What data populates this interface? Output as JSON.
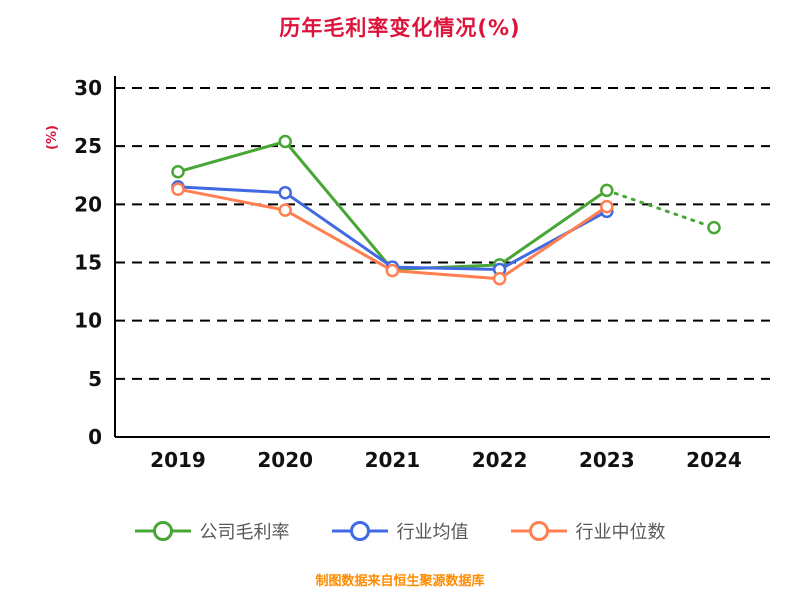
{
  "title": "历年毛利率变化情况(%)",
  "footer": "制图数据来自恒生聚源数据库",
  "colors": {
    "title": "#DC143C",
    "ylabel": "#DC143C",
    "axis": "#000000",
    "tick_text": "#111111",
    "footer": "#FF8C00",
    "legend_text": "#595959",
    "series_company": "#47A636",
    "series_industry_avg": "#4169E1",
    "series_industry_median": "#FF7F50"
  },
  "chart_data": {
    "type": "line",
    "title": "历年毛利率变化情况(%)",
    "ylabel": "(%)",
    "xlabel": "",
    "ylim": [
      0,
      30
    ],
    "yticks": [
      0,
      5,
      10,
      15,
      20,
      25,
      30
    ],
    "x": [
      "2019",
      "2020",
      "2021",
      "2022",
      "2023",
      "2024"
    ],
    "grid": "horizontal-dashed",
    "legend_position": "bottom",
    "series": [
      {
        "name": "公司毛利率",
        "color": "#47A636",
        "values": [
          22.8,
          25.4,
          14.4,
          14.8,
          21.2,
          18.0
        ],
        "last_segment_dashed": true
      },
      {
        "name": "行业均值",
        "color": "#4169E1",
        "values": [
          21.5,
          21.0,
          14.6,
          14.4,
          19.4,
          null
        ],
        "last_segment_dashed": false
      },
      {
        "name": "行业中位数",
        "color": "#FF7F50",
        "values": [
          21.3,
          19.5,
          14.3,
          13.6,
          19.8,
          null
        ],
        "last_segment_dashed": false
      }
    ]
  }
}
